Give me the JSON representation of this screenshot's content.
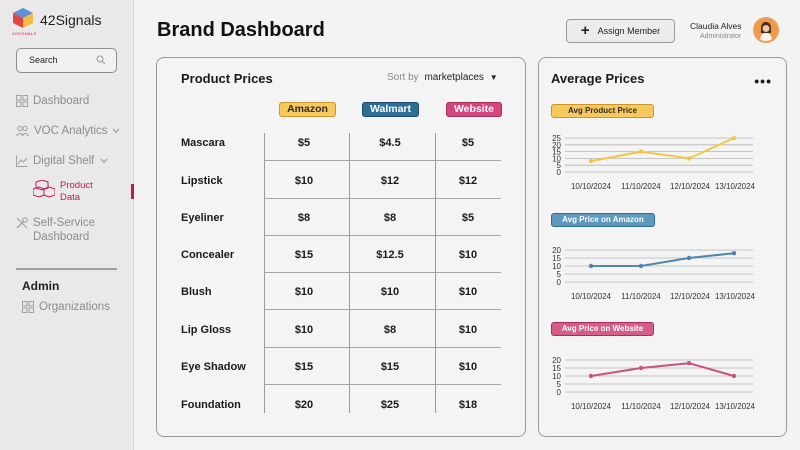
{
  "app": {
    "name": "42Signals",
    "tagline": "42SIGNALS"
  },
  "sidebar": {
    "search_label": "Search",
    "items": [
      {
        "label": "Dashboard",
        "icon": "grid-icon"
      },
      {
        "label": "VOC Analytics",
        "icon": "people-icon"
      },
      {
        "label": "Digital Shelf",
        "icon": "chart-icon"
      },
      {
        "label": "Product Data",
        "icon": "boxes-icon"
      },
      {
        "label": "Self-Service Dashboard",
        "label_line1": "Self-Service",
        "label_line2": "Dashboard",
        "icon": "tools-icon"
      }
    ],
    "admin_title": "Admin",
    "admin_items": [
      {
        "label": "Organizations",
        "icon": "grid-icon"
      }
    ]
  },
  "header": {
    "title": "Brand Dashboard",
    "assign_label": "Assign Member",
    "user_name": "Claudia Alves",
    "user_role": "Administrator"
  },
  "prices": {
    "title": "Product Prices",
    "sort_label": "Sort by",
    "sort_value": "marketplaces",
    "columns": [
      "Amazon",
      "Walmart",
      "Website"
    ],
    "rows": [
      {
        "name": "Mascara",
        "values": [
          "$5",
          "$4.5",
          "$5"
        ]
      },
      {
        "name": "Lipstick",
        "values": [
          "$10",
          "$12",
          "$12"
        ]
      },
      {
        "name": "Eyeliner",
        "values": [
          "$8",
          "$8",
          "$5"
        ]
      },
      {
        "name": "Concealer",
        "values": [
          "$15",
          "$12.5",
          "$10"
        ]
      },
      {
        "name": "Blush",
        "values": [
          "$10",
          "$10",
          "$10"
        ]
      },
      {
        "name": "Lip Gloss",
        "values": [
          "$10",
          "$8",
          "$10"
        ]
      },
      {
        "name": "Eye Shadow",
        "values": [
          "$15",
          "$15",
          "$10"
        ]
      },
      {
        "name": "Foundation",
        "values": [
          "$20",
          "$25",
          "$18"
        ]
      }
    ]
  },
  "average": {
    "title": "Average Prices",
    "menu_icon": "more-horizontal-icon"
  },
  "colors": {
    "amazon": "#f7c85c",
    "walmart": "#2d6d96",
    "website": "#d4457a",
    "accent": "#c2185b"
  },
  "chart_data": [
    {
      "type": "line",
      "title": "Avg Product Price",
      "x": [
        "10/10/2024",
        "11/10/2024",
        "12/10/2024",
        "13/10/2024"
      ],
      "series": [
        {
          "values": [
            8,
            15,
            10,
            25
          ]
        }
      ],
      "yticks": [
        0,
        5,
        10,
        15,
        20,
        25
      ],
      "ylim": [
        0,
        25
      ],
      "color": "#f2c744"
    },
    {
      "type": "line",
      "title": "Avg Price on Amazon",
      "x": [
        "10/10/2024",
        "11/10/2024",
        "12/10/2024",
        "13/10/2024"
      ],
      "series": [
        {
          "values": [
            10,
            10,
            15,
            18
          ]
        }
      ],
      "yticks": [
        0,
        5,
        10,
        15,
        20
      ],
      "ylim": [
        0,
        20
      ],
      "color": "#4f86ad"
    },
    {
      "type": "line",
      "title": "Avg Price on Website",
      "x": [
        "10/10/2024",
        "11/10/2024",
        "12/10/2024",
        "13/10/2024"
      ],
      "series": [
        {
          "values": [
            10,
            15,
            18,
            10
          ]
        }
      ],
      "yticks": [
        0,
        5,
        10,
        15,
        20
      ],
      "ylim": [
        0,
        20
      ],
      "color": "#c75481"
    }
  ]
}
